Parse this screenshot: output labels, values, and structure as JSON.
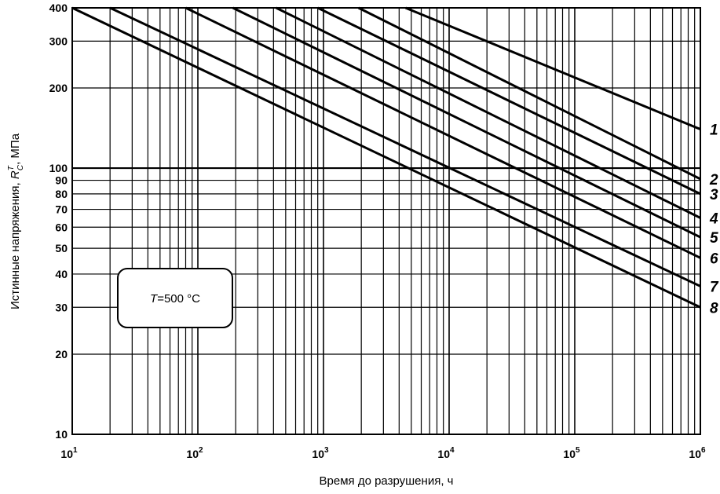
{
  "chart_data": {
    "type": "line",
    "xscale": "log",
    "yscale": "log",
    "xlim": [
      10,
      1000000
    ],
    "ylim": [
      10,
      400
    ],
    "xticks": [
      {
        "base": "10",
        "exp": "1"
      },
      {
        "base": "10",
        "exp": "2"
      },
      {
        "base": "10",
        "exp": "3"
      },
      {
        "base": "10",
        "exp": "4"
      },
      {
        "base": "10",
        "exp": "5"
      },
      {
        "base": "10",
        "exp": "6"
      }
    ],
    "yticks": [
      "10",
      "20",
      "30",
      "40",
      "50",
      "60",
      "70",
      "80",
      "90",
      "100",
      "200",
      "300",
      "400"
    ],
    "xlabel": "Время до разрушения, ч",
    "ylabel": {
      "prefix": "Истинные напряжения, ",
      "symbol": "R",
      "sup": "T",
      "sub": "C",
      "suffix": ", МПа"
    },
    "grid": true,
    "annotation": {
      "italic": "T",
      "rest": "=500 °C"
    },
    "series": [
      {
        "label": "1",
        "points": [
          [
            4500,
            400
          ],
          [
            1000000,
            140
          ]
        ]
      },
      {
        "label": "2",
        "points": [
          [
            1900,
            400
          ],
          [
            1000000,
            91
          ]
        ]
      },
      {
        "label": "3",
        "points": [
          [
            900,
            400
          ],
          [
            1000000,
            80
          ]
        ]
      },
      {
        "label": "4",
        "points": [
          [
            420,
            400
          ],
          [
            1000000,
            65
          ]
        ]
      },
      {
        "label": "5",
        "points": [
          [
            190,
            400
          ],
          [
            1000000,
            55
          ]
        ]
      },
      {
        "label": "6",
        "points": [
          [
            80,
            400
          ],
          [
            1000000,
            46
          ]
        ]
      },
      {
        "label": "7",
        "points": [
          [
            20,
            400
          ],
          [
            1000000,
            36
          ]
        ]
      },
      {
        "label": "8",
        "points": [
          [
            10,
            400
          ],
          [
            1000000,
            30
          ]
        ]
      }
    ]
  }
}
